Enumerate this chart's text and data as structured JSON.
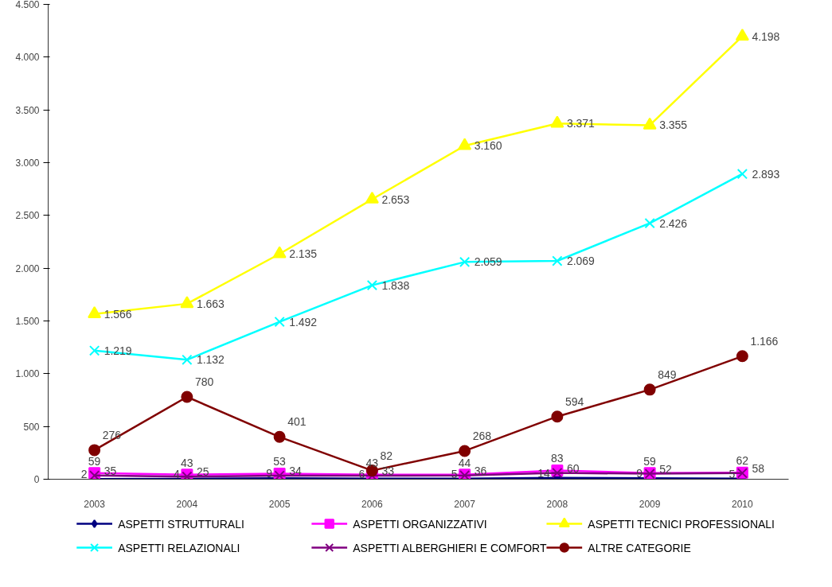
{
  "chart_data": {
    "type": "line",
    "categories": [
      "2003",
      "2004",
      "2005",
      "2006",
      "2007",
      "2008",
      "2009",
      "2010"
    ],
    "ylim": [
      0,
      4500
    ],
    "yticks": [
      {
        "value": 0,
        "label": "0"
      },
      {
        "value": 500,
        "label": "500"
      },
      {
        "value": 1000,
        "label": "1.000"
      },
      {
        "value": 1500,
        "label": "1.500"
      },
      {
        "value": 2000,
        "label": "2.000"
      },
      {
        "value": 2500,
        "label": "2.500"
      },
      {
        "value": 3000,
        "label": "3.000"
      },
      {
        "value": 3500,
        "label": "3.500"
      },
      {
        "value": 4000,
        "label": "4.000"
      },
      {
        "value": 4500,
        "label": "4.500"
      }
    ],
    "grid": false,
    "legend": "bottom",
    "data_labels": true,
    "series": [
      {
        "name": "ASPETTI STRUTTURALI",
        "color": "#000080",
        "marker": "diamond",
        "values": [
          2,
          4,
          9,
          6,
          5,
          14,
          9,
          5
        ]
      },
      {
        "name": "ASPETTI ORGANIZZATIVI",
        "color": "#ff00ff",
        "marker": "square",
        "values": [
          59,
          43,
          53,
          43,
          44,
          83,
          59,
          62
        ]
      },
      {
        "name": "ASPETTI TECNICI PROFESSIONALI",
        "color": "#ffff00",
        "marker": "triangle",
        "values": [
          1566,
          1663,
          2135,
          2653,
          3160,
          3371,
          3355,
          4198
        ],
        "value_labels": [
          "1.566",
          "1.663",
          "2.135",
          "2.653",
          "3.160",
          "3.371",
          "3.355",
          "4.198"
        ]
      },
      {
        "name": "ASPETTI RELAZIONALI",
        "color": "#00ffff",
        "marker": "cross",
        "values": [
          1219,
          1132,
          1492,
          1838,
          2059,
          2069,
          2426,
          2893
        ],
        "value_labels": [
          "1.219",
          "1.132",
          "1.492",
          "1.838",
          "2.059",
          "2.069",
          "2.426",
          "2.893"
        ]
      },
      {
        "name": "ASPETTI ALBERGHIERI E COMFORT",
        "color": "#800080",
        "marker": "cross",
        "values": [
          35,
          25,
          34,
          33,
          36,
          60,
          52,
          58
        ]
      },
      {
        "name": "ALTRE CATEGORIE",
        "color": "#800000",
        "marker": "circle",
        "values": [
          276,
          780,
          401,
          82,
          268,
          594,
          849,
          1166
        ],
        "value_labels": [
          "276",
          "780",
          "401",
          "82",
          "268",
          "594",
          "849",
          "1.166"
        ]
      }
    ]
  }
}
